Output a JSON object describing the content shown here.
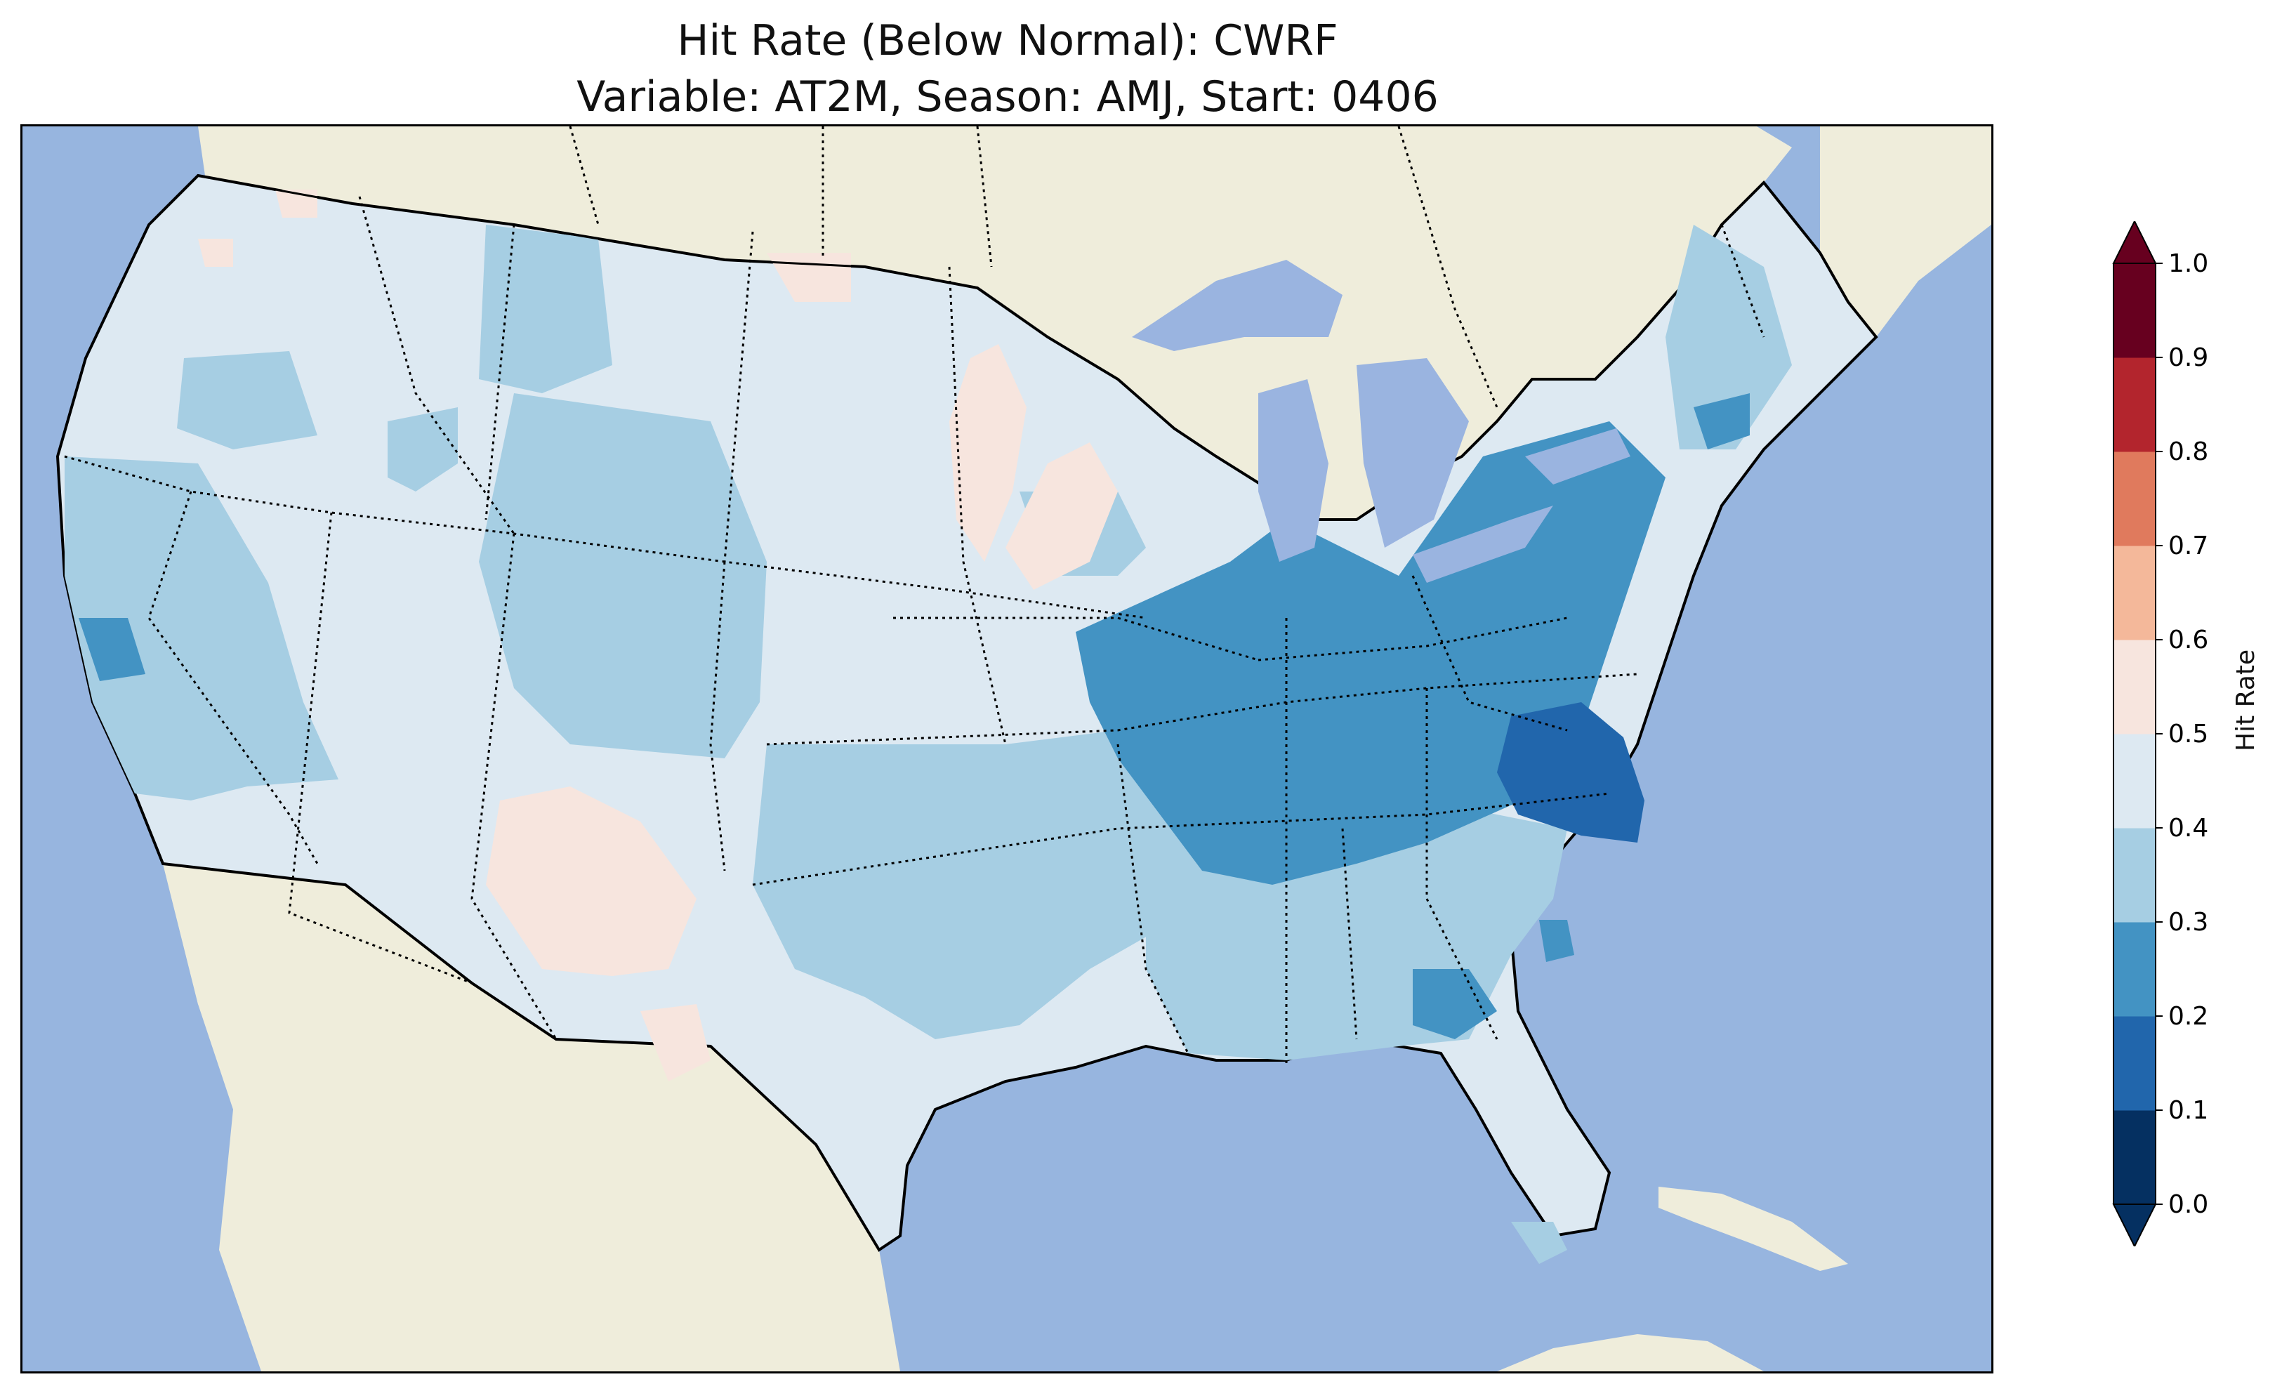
{
  "title": {
    "line1": "Hit Rate (Below Normal): CWRF",
    "line2": "Variable: AT2M, Season: AMJ, Start: 0406"
  },
  "colors": {
    "ocean": "#97b5df",
    "land": "#efeddb",
    "lakes": "#9ab4e0"
  },
  "colorbar": {
    "label": "Hit Rate",
    "ticks": [
      "0.0",
      "0.1",
      "0.2",
      "0.3",
      "0.4",
      "0.5",
      "0.6",
      "0.7",
      "0.8",
      "0.9",
      "1.0"
    ],
    "bins": [
      {
        "from": 0.0,
        "to": 0.1,
        "color": "#053061"
      },
      {
        "from": 0.1,
        "to": 0.2,
        "color": "#2166ac"
      },
      {
        "from": 0.2,
        "to": 0.3,
        "color": "#4393c3"
      },
      {
        "from": 0.3,
        "to": 0.4,
        "color": "#a6cee3"
      },
      {
        "from": 0.4,
        "to": 0.5,
        "color": "#dde9f2"
      },
      {
        "from": 0.5,
        "to": 0.6,
        "color": "#f7e5de"
      },
      {
        "from": 0.6,
        "to": 0.7,
        "color": "#f4b89a"
      },
      {
        "from": 0.7,
        "to": 0.8,
        "color": "#e07a5d"
      },
      {
        "from": 0.8,
        "to": 0.9,
        "color": "#b3252d"
      },
      {
        "from": 0.9,
        "to": 1.0,
        "color": "#67001f"
      }
    ],
    "extend_low_color": "#053061",
    "extend_high_color": "#67001f"
  }
}
